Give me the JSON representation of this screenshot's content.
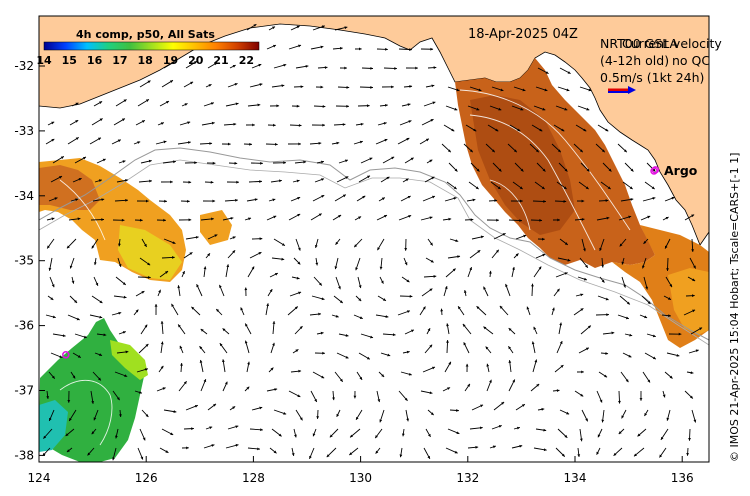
{
  "header": {
    "colorbar_title": "4h comp, p50, All Sats",
    "timestamp": "18-Apr-2025 04Z"
  },
  "legend": {
    "line1": "NRT00 GSLA",
    "line2": "(4-12h old)",
    "overlay1": "Current velocity",
    "overlay2": "no QC",
    "line3": "0.5m/s (1kt 24h)",
    "argo_label": "Argo"
  },
  "footer_side_text": "© IMOS 21-Apr-2025 15:04 Hobart; Tscale=CARS+[-1 1]",
  "colorbar": {
    "min": 14,
    "max": 22.5,
    "labels": [
      "14",
      "15",
      "16",
      "17",
      "18",
      "19",
      "20",
      "21",
      "22"
    ],
    "stops": [
      "#00008f",
      "#0040ff",
      "#00c0ff",
      "#20d080",
      "#40c040",
      "#a0e020",
      "#ffff00",
      "#ffc000",
      "#ff8000",
      "#d04000",
      "#800000"
    ]
  },
  "axes": {
    "x_ticks": [
      "124",
      "126",
      "128",
      "130",
      "132",
      "134",
      "136"
    ],
    "y_ticks": [
      "-32",
      "-33",
      "-34",
      "-35",
      "-36",
      "-37",
      "-38"
    ]
  },
  "colors": {
    "land": "#fecb9a",
    "sst_warm": "#c8621a",
    "sst_mid": "#f0a020",
    "sst_cool": "#e8d020",
    "sst_green": "#30b040"
  },
  "argo_floats": [
    {
      "lon": 135.5,
      "lat": -33.6
    },
    {
      "lon": 124.5,
      "lat": -36.45
    }
  ]
}
